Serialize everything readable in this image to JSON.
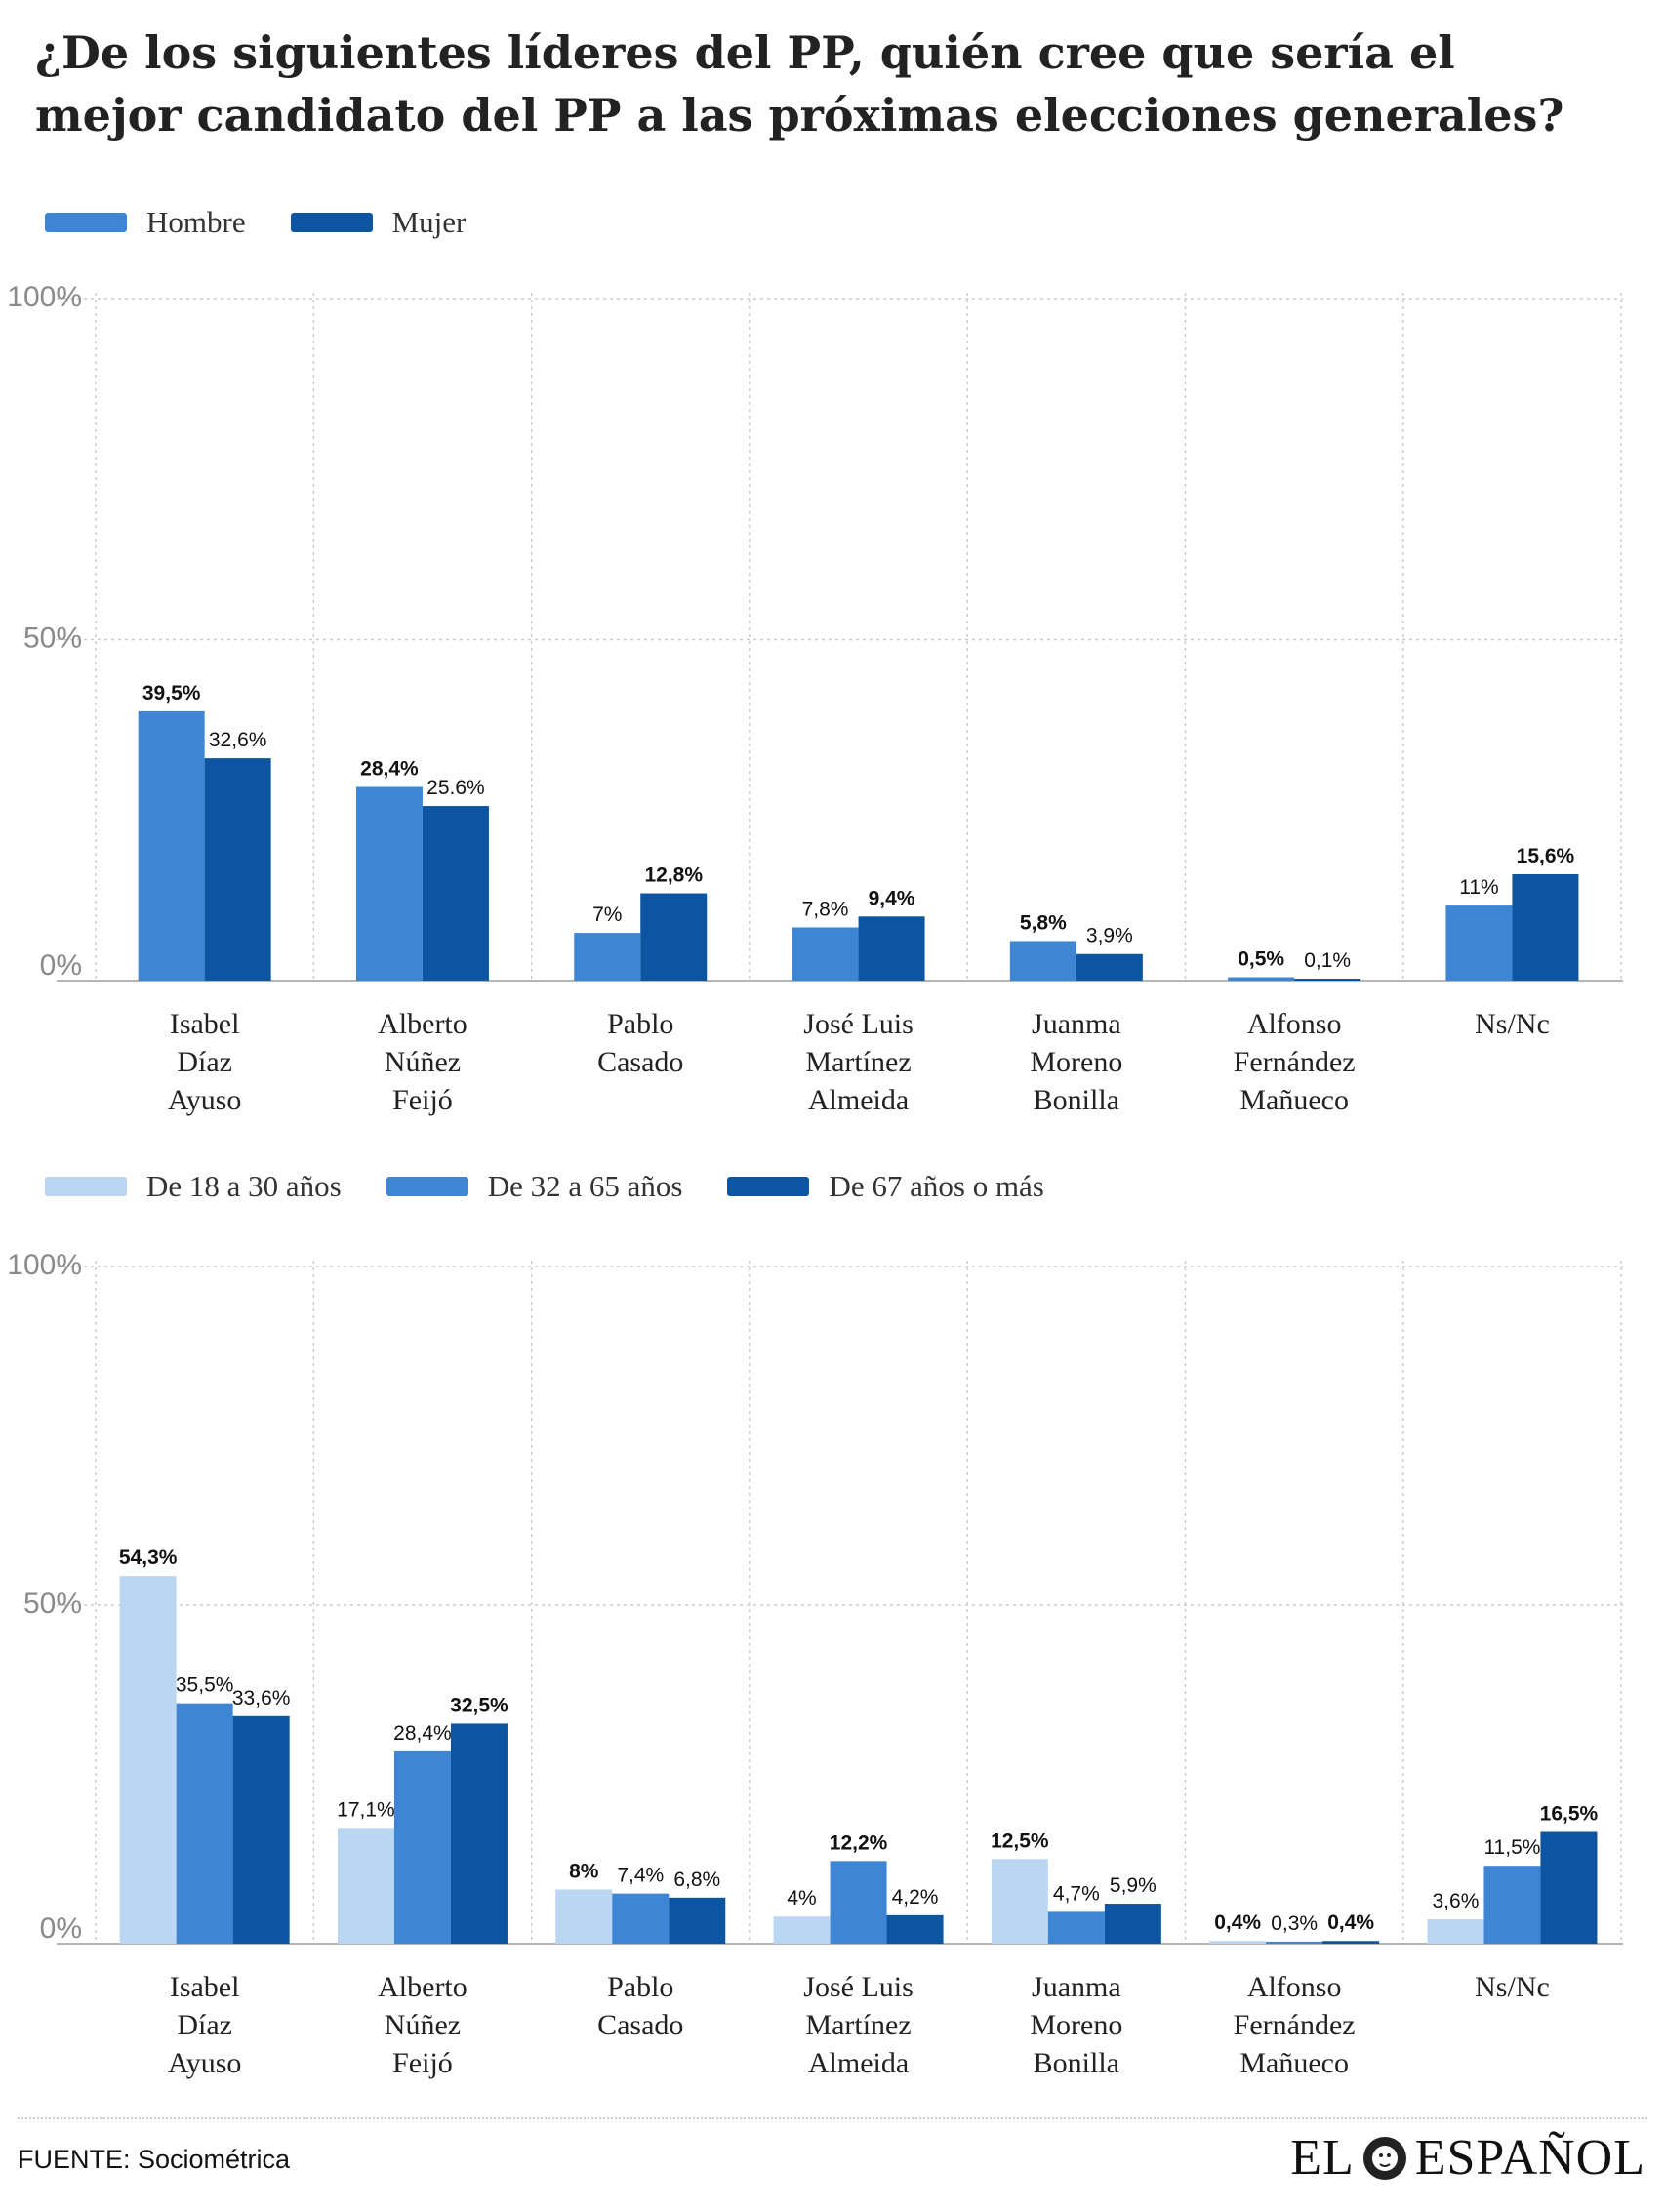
{
  "title": "¿De los siguientes líderes del PP, quién cree que sería el mejor candidato del PP a las próximas elecciones generales?",
  "colors": {
    "light": "#bad6f2",
    "mid": "#3e86d4",
    "dark": "#0d55a1",
    "grid": "#cccccc"
  },
  "legend_gender": [
    {
      "label": "Hombre",
      "color": "#3e86d4"
    },
    {
      "label": "Mujer",
      "color": "#0d55a1"
    }
  ],
  "legend_age": [
    {
      "label": "De 18 a 30 años",
      "color": "#bad6f2"
    },
    {
      "label": "De 32 a 65 años",
      "color": "#3e86d4"
    },
    {
      "label": "De 67 años o más",
      "color": "#0d55a1"
    }
  ],
  "chart_data": [
    {
      "type": "bar",
      "title": "",
      "xlabel": "",
      "ylabel": "",
      "ylim": [
        0,
        100
      ],
      "yticks": [
        "0%",
        "50%",
        "100%"
      ],
      "grid": true,
      "legend_position": "top-left",
      "categories": [
        [
          "Isabel",
          "Díaz",
          "Ayuso"
        ],
        [
          "Alberto",
          "Núñez",
          "Feijó"
        ],
        [
          "Pablo",
          "Casado"
        ],
        [
          "José Luis",
          "Martínez",
          "Almeida"
        ],
        [
          "Juanma",
          "Moreno",
          "Bonilla"
        ],
        [
          "Alfonso",
          "Fernández",
          "Mañueco"
        ],
        [
          "Ns/Nc"
        ]
      ],
      "series": [
        {
          "name": "Hombre",
          "color": "#3e86d4",
          "values": [
            39.5,
            28.4,
            7,
            7.8,
            5.8,
            0.5,
            11
          ],
          "labels": [
            "39,5%",
            "28,4%",
            "7%",
            "7,8%",
            "5,8%",
            "0,5%",
            "11%"
          ],
          "bold": [
            true,
            true,
            false,
            false,
            true,
            true,
            false
          ]
        },
        {
          "name": "Mujer",
          "color": "#0d55a1",
          "values": [
            32.6,
            25.6,
            12.8,
            9.4,
            3.9,
            0.1,
            15.6
          ],
          "labels": [
            "32,6%",
            "25.6%",
            "12,8%",
            "9,4%",
            "3,9%",
            "0,1%",
            "15,6%"
          ],
          "bold": [
            false,
            false,
            true,
            true,
            false,
            false,
            true
          ]
        }
      ]
    },
    {
      "type": "bar",
      "title": "",
      "xlabel": "",
      "ylabel": "",
      "ylim": [
        0,
        100
      ],
      "yticks": [
        "0%",
        "50%",
        "100%"
      ],
      "grid": true,
      "legend_position": "top-left",
      "categories": [
        [
          "Isabel",
          "Díaz",
          "Ayuso"
        ],
        [
          "Alberto",
          "Núñez",
          "Feijó"
        ],
        [
          "Pablo",
          "Casado"
        ],
        [
          "José Luis",
          "Martínez",
          "Almeida"
        ],
        [
          "Juanma",
          "Moreno",
          "Bonilla"
        ],
        [
          "Alfonso",
          "Fernández",
          "Mañueco"
        ],
        [
          "Ns/Nc"
        ]
      ],
      "series": [
        {
          "name": "De 18 a 30 años",
          "color": "#bad6f2",
          "values": [
            54.3,
            17.1,
            8,
            4,
            12.5,
            0.4,
            3.6
          ],
          "labels": [
            "54,3%",
            "17,1%",
            "8%",
            "4%",
            "12,5%",
            "0,4%",
            "3,6%"
          ],
          "bold": [
            true,
            false,
            true,
            false,
            true,
            true,
            false
          ]
        },
        {
          "name": "De 32 a 65 años",
          "color": "#3e86d4",
          "values": [
            35.5,
            28.4,
            7.4,
            12.2,
            4.7,
            0.3,
            11.5
          ],
          "labels": [
            "35,5%",
            "28,4%",
            "7,4%",
            "12,2%",
            "4,7%",
            "0,3%",
            "11,5%"
          ],
          "bold": [
            false,
            false,
            false,
            true,
            false,
            false,
            false
          ]
        },
        {
          "name": "De 67 años o más",
          "color": "#0d55a1",
          "values": [
            33.6,
            32.5,
            6.8,
            4.2,
            5.9,
            0.4,
            16.5
          ],
          "labels": [
            "33,6%",
            "32,5%",
            "6,8%",
            "4,2%",
            "5,9%",
            "0,4%",
            "16,5%"
          ],
          "bold": [
            false,
            true,
            false,
            false,
            false,
            true,
            true
          ]
        }
      ]
    }
  ],
  "footer": {
    "source": "FUENTE: Sociométrica",
    "brand_left": "EL",
    "brand_right": "ESPAÑOL"
  }
}
